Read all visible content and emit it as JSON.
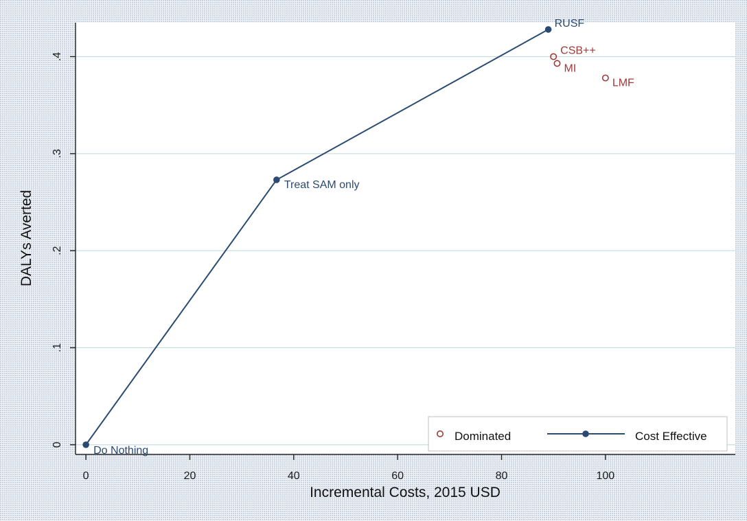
{
  "chart_data": {
    "type": "line",
    "title": "",
    "xlabel": "Incremental Costs, 2015 USD",
    "ylabel": "DALYs Averted",
    "xlim": [
      -2,
      125
    ],
    "ylim": [
      -0.01,
      0.435
    ],
    "xticks": [
      0,
      20,
      40,
      60,
      80,
      100
    ],
    "xtick_labels": [
      "0",
      "20",
      "40",
      "60",
      "80",
      "100"
    ],
    "yticks": [
      0,
      0.1,
      0.2,
      0.3,
      0.4
    ],
    "ytick_labels": [
      "0",
      ".1",
      ".2",
      ".3",
      ".4"
    ],
    "grid": "horizontal",
    "legend_position": "bottom-right",
    "colors": {
      "cost_effective": "#2a4a72",
      "dominated": "#a03a3a",
      "grid": "#c9dde0",
      "plot_bg": "#ffffff"
    },
    "series": [
      {
        "name": "Dominated",
        "style": "hollow-markers",
        "points": [
          {
            "label": "CSB++",
            "x": 90,
            "y": 0.4
          },
          {
            "label": "MI",
            "x": 90.7,
            "y": 0.393
          },
          {
            "label": "LMF",
            "x": 100,
            "y": 0.378
          }
        ]
      },
      {
        "name": "Cost Effective",
        "style": "line-markers",
        "points": [
          {
            "label": "Do Nothing",
            "x": 0,
            "y": 0.0
          },
          {
            "label": "Treat SAM only",
            "x": 36.7,
            "y": 0.273
          },
          {
            "label": "RUSF",
            "x": 89,
            "y": 0.428
          }
        ]
      }
    ]
  }
}
